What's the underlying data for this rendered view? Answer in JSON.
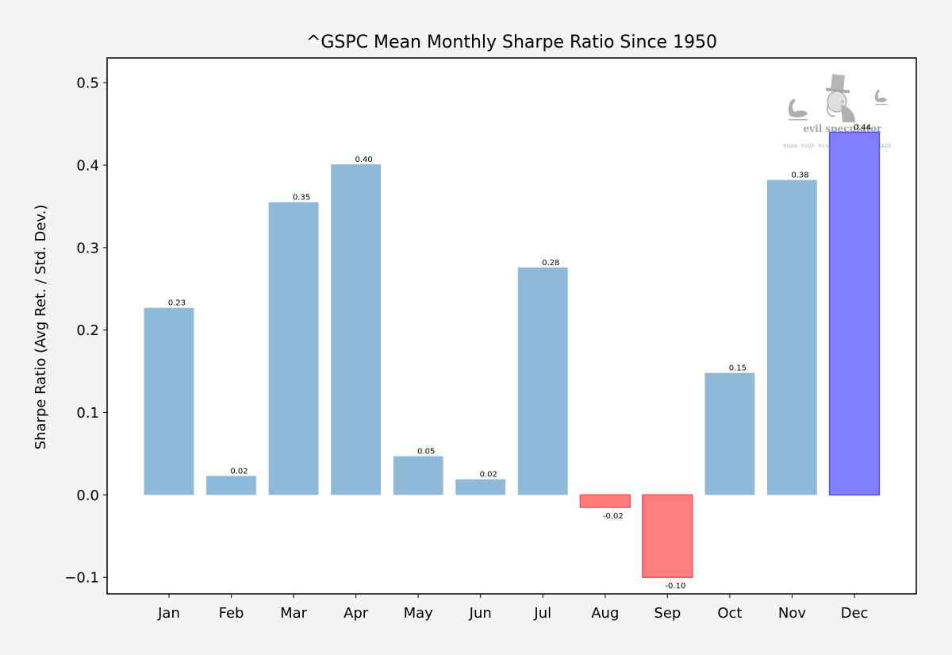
{
  "chart_data": {
    "type": "bar",
    "title": "^GSPC Mean Monthly Sharpe Ratio Since 1950",
    "xlabel": "",
    "ylabel": "Sharpe Ratio (Avg Ret. / Std. Dev.)",
    "ylim": [
      -0.12,
      0.53
    ],
    "yticks": [
      -0.1,
      0.0,
      0.1,
      0.2,
      0.3,
      0.4,
      0.5
    ],
    "ytick_labels": [
      "−0.1",
      "0.0",
      "0.1",
      "0.2",
      "0.3",
      "0.4",
      "0.5"
    ],
    "grid": false,
    "categories": [
      "Jan",
      "Feb",
      "Mar",
      "Apr",
      "May",
      "Jun",
      "Jul",
      "Aug",
      "Sep",
      "Oct",
      "Nov",
      "Dec"
    ],
    "values": [
      0.227,
      0.023,
      0.355,
      0.401,
      0.047,
      0.019,
      0.276,
      -0.015,
      -0.1,
      0.148,
      0.382,
      0.44
    ],
    "data_labels": [
      "0.23",
      "0.02",
      "0.35",
      "0.40",
      "0.05",
      "0.02",
      "0.28",
      "-0.02",
      "-0.10",
      "0.15",
      "0.38",
      "0.44"
    ],
    "highlight_category": "Dec",
    "colors": {
      "positive_fill": "#8fb9d8",
      "negative_fill": "#ff7f7f",
      "negative_edge": "#ff4d4d",
      "highlight_fill": "#7f7fff",
      "highlight_edge": "#4d4dff",
      "highlight_label": "#0000cc"
    }
  },
  "watermark": {
    "brand": "evil speculator",
    "tagline": "KNOW YOUR RISK BEFORE YOU TRADE"
  }
}
